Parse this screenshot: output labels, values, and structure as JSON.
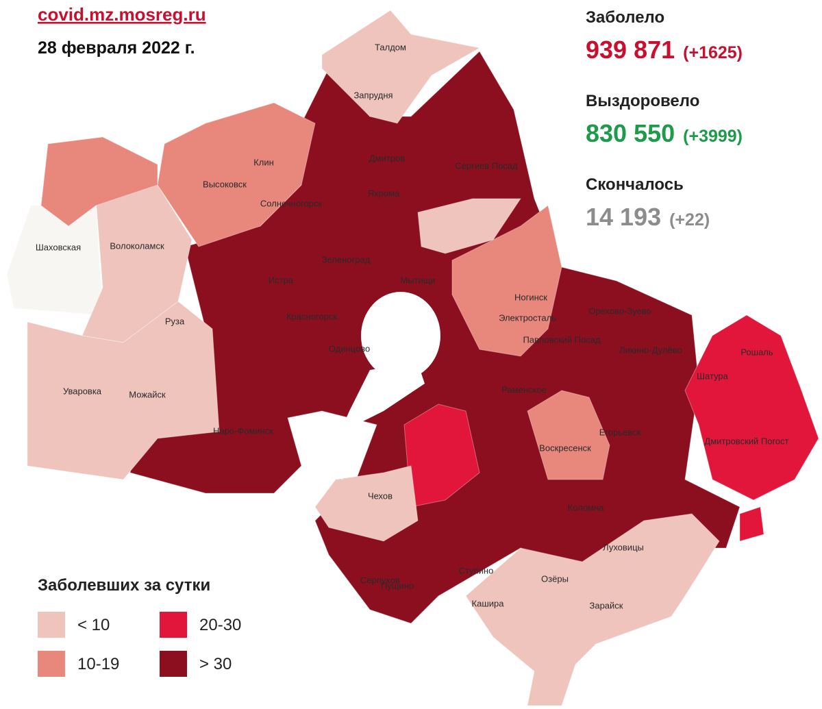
{
  "header": {
    "source": "covid.mz.mosreg.ru",
    "date": "28 февраля 2022 г."
  },
  "stats": [
    {
      "label": "Заболело",
      "value": "939 871",
      "change": "(+1625)",
      "color": "#c8102e"
    },
    {
      "label": "Выздоровело",
      "value": "830 550",
      "change": "(+3999)",
      "color": "#1e9a4b"
    },
    {
      "label": "Скончалось",
      "value": "14 193",
      "change": "(+22)",
      "color": "#8c8c8c"
    }
  ],
  "legend": {
    "title": "Заболевших за сутки",
    "items": [
      {
        "label": "< 10",
        "color": "#efc4bc"
      },
      {
        "label": "20-30",
        "color": "#e2163a"
      },
      {
        "label": "10-19",
        "color": "#e8877c"
      },
      {
        "label": "> 30",
        "color": "#8b0f1f"
      }
    ]
  },
  "places": [
    "Талдом",
    "Запрудня",
    "Дмитров",
    "Сергиев Посад",
    "Клин",
    "Высоковск",
    "Солнечногорск",
    "Яхрома",
    "Шаховская",
    "Волоколамск",
    "Зеленоград",
    "Истра",
    "Мытищи",
    "Ногинск",
    "Электросталь",
    "Орехово-Зуево",
    "Красногорск",
    "Павловский Посад",
    "Одинцово",
    "Руза",
    "Ликино-Дулёво",
    "Рошаль",
    "Шатура",
    "Уваровка",
    "Можайск",
    "Раменское",
    "Наро-Фоминск",
    "Егорьевск",
    "Воскресенск",
    "Дмитровский Погост",
    "Чехов",
    "Коломна",
    "Серпухов",
    "Ступино",
    "Озёры",
    "Луховицы",
    "Кашира",
    "Зарайск",
    "Пущино"
  ]
}
